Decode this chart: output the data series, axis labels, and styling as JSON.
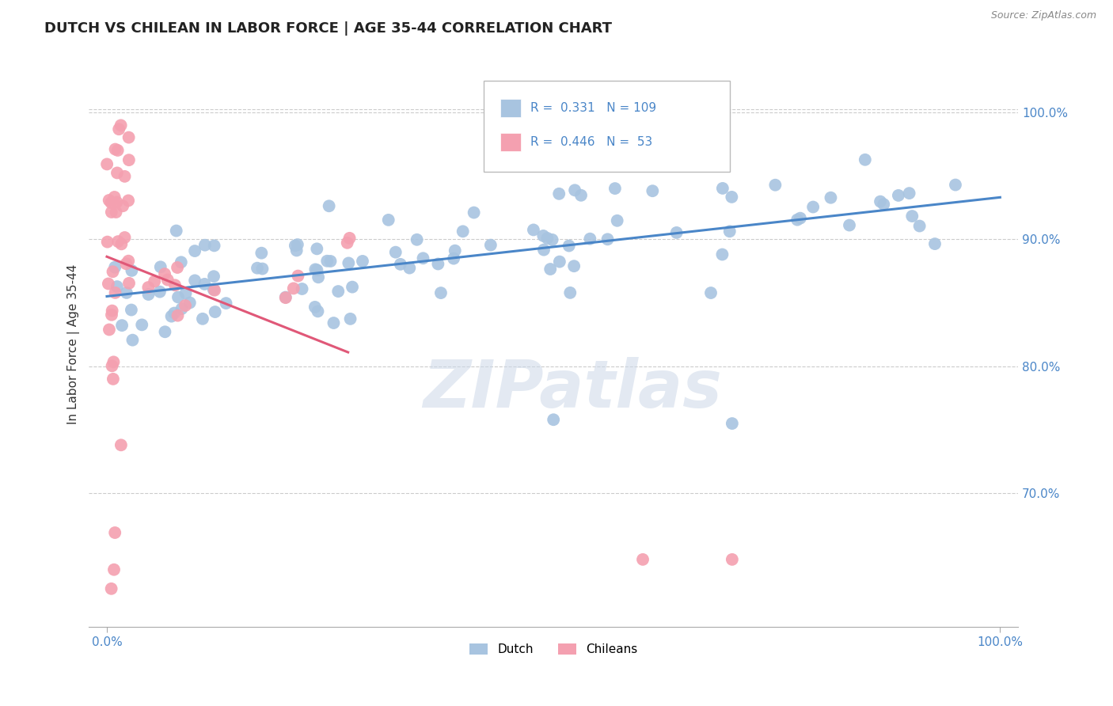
{
  "title": "DUTCH VS CHILEAN IN LABOR FORCE | AGE 35-44 CORRELATION CHART",
  "source": "Source: ZipAtlas.com",
  "ylabel": "In Labor Force | Age 35-44",
  "xlim": [
    -0.02,
    1.02
  ],
  "ylim": [
    0.595,
    1.04
  ],
  "ytick_values": [
    0.7,
    0.8,
    0.9,
    1.0
  ],
  "ytick_labels": [
    "70.0%",
    "80.0%",
    "90.0%",
    "100.0%"
  ],
  "xtick_values": [
    0.0,
    1.0
  ],
  "xtick_labels": [
    "0.0%",
    "100.0%"
  ],
  "dutch_R": 0.331,
  "dutch_N": 109,
  "chilean_R": 0.446,
  "chilean_N": 53,
  "dutch_color": "#a8c4e0",
  "chilean_color": "#f4a0b0",
  "dutch_line_color": "#4a86c8",
  "chilean_line_color": "#e05878",
  "watermark": "ZIPatlas",
  "grid_color": "#cccccc",
  "title_color": "#222222",
  "source_color": "#888888",
  "label_color": "#333333",
  "tick_color": "#4a86c8"
}
